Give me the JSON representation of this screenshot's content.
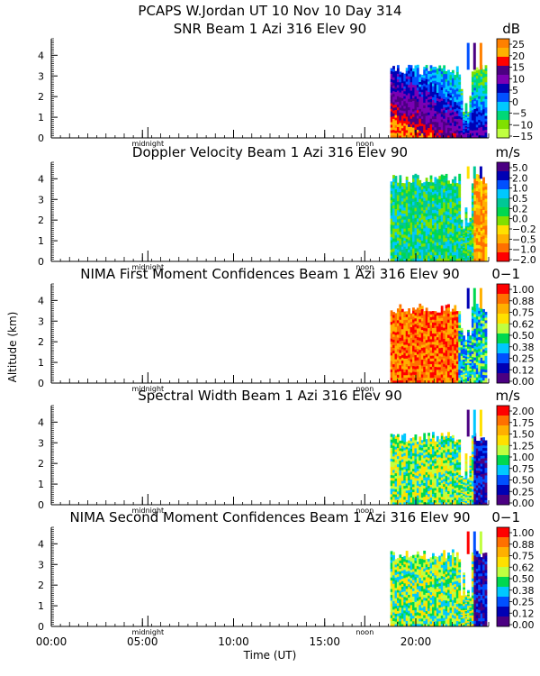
{
  "chart_data": {
    "type": "heatmap",
    "title": "PCAPS W.Jordan UT  10 Nov 10 Day 314",
    "ylabel": "Altitude (km)",
    "xlabel": "Time (UT)",
    "x_ticks": [
      "00:00",
      "05:00",
      "10:00",
      "15:00",
      "20:00"
    ],
    "x_tick_hours": [
      0,
      5,
      10,
      15,
      20
    ],
    "x_range_hours": [
      0,
      24
    ],
    "y_ticks": [
      "0",
      "1",
      "2",
      "3",
      "4"
    ],
    "ylim_km": [
      0,
      4.8
    ],
    "markers": [
      {
        "label": "midnight",
        "hour": 5.3
      },
      {
        "label": "noon",
        "hour": 17.2
      }
    ],
    "data_window_hours": [
      18.6,
      23.9
    ],
    "panels": [
      {
        "title": "SNR Beam 1 Azi 316 Elev 90",
        "unit": "dB",
        "colorbar_labels": [
          "25",
          "20",
          "15",
          "10",
          "5",
          "0",
          "−5",
          "−10",
          "−15"
        ],
        "colorbar_colors": [
          "#ff8000",
          "#ffb000",
          "#ff0000",
          "#4b0082",
          "#7b00b4",
          "#0000b4",
          "#0050ff",
          "#00c8ff",
          "#00d878",
          "#80e000",
          "#c0ff40"
        ],
        "top_km": 3.3
      },
      {
        "title": "Doppler Velocity Beam 1 Azi 316 Elev 90",
        "unit": "m/s",
        "colorbar_labels": [
          "5.0",
          "2.0",
          "1.0",
          "0.5",
          "0.2",
          "0.0",
          "−0.2",
          "−0.5",
          "−1.0",
          "−2.0"
        ],
        "colorbar_colors": [
          "#4b0082",
          "#0000b4",
          "#0050ff",
          "#00c8ff",
          "#00c896",
          "#00d850",
          "#80e000",
          "#ffe000",
          "#ffb000",
          "#ff7000",
          "#ff0000"
        ],
        "top_km": 4.0
      },
      {
        "title": "NIMA First Moment Confidences Beam 1 Azi 316 Elev 90",
        "unit": "0−1",
        "colorbar_labels": [
          "1.00",
          "0.88",
          "0.75",
          "0.62",
          "0.50",
          "0.38",
          "0.25",
          "0.12",
          "0.00"
        ],
        "colorbar_colors": [
          "#ff0000",
          "#ff7000",
          "#ffb000",
          "#ffe000",
          "#c0ff40",
          "#00d850",
          "#00c8ff",
          "#0050ff",
          "#0000b4",
          "#4b0082"
        ],
        "top_km": 3.6
      },
      {
        "title": "Spectral Width Beam 1 Azi 316 Elev 90",
        "unit": "m/s",
        "colorbar_labels": [
          "2.00",
          "1.75",
          "1.50",
          "1.25",
          "1.00",
          "0.75",
          "0.50",
          "0.25",
          "0.00"
        ],
        "colorbar_colors": [
          "#ff0000",
          "#ff7000",
          "#ffb000",
          "#ffe000",
          "#c0ff40",
          "#00d850",
          "#00c8ff",
          "#0050ff",
          "#0000b4",
          "#4b0082"
        ],
        "top_km": 3.3
      },
      {
        "title": "NIMA Second Moment Confidences Beam 1 Azi 316 Elev 90",
        "unit": "0−1",
        "colorbar_labels": [
          "1.00",
          "0.88",
          "0.75",
          "0.62",
          "0.50",
          "0.38",
          "0.25",
          "0.12",
          "0.00"
        ],
        "colorbar_colors": [
          "#ff0000",
          "#ff7000",
          "#ffb000",
          "#ffe000",
          "#c0ff40",
          "#00d850",
          "#00c8ff",
          "#0050ff",
          "#0000b4",
          "#4b0082"
        ],
        "top_km": 3.5
      }
    ]
  }
}
